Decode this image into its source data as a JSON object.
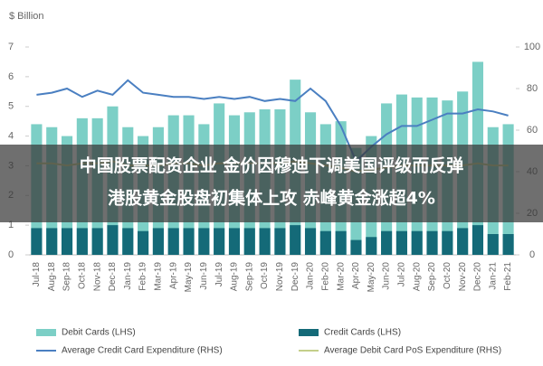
{
  "chart_data": {
    "type": "bar",
    "y_label": "$ Billion",
    "categories": [
      "Jul-18",
      "Aug-18",
      "Sep-18",
      "Oct-18",
      "Nov-18",
      "Dec-18",
      "Jan-19",
      "Feb-19",
      "Mar-19",
      "Apr-19",
      "May-19",
      "Jun-19",
      "Jul-19",
      "Aug-19",
      "Sep-19",
      "Oct-19",
      "Nov-19",
      "Dec-19",
      "Jan-20",
      "Feb-20",
      "Mar-20",
      "Apr-20",
      "May-20",
      "Jun-20",
      "Jul-20",
      "Aug-20",
      "Sep-20",
      "Oct-20",
      "Nov-20",
      "Dec-20",
      "Jan-21",
      "Feb-21"
    ],
    "series": [
      {
        "name": "Debit Cards (LHS)",
        "type": "bar",
        "color": "#7ccfc6",
        "values": [
          4.4,
          4.3,
          4.0,
          4.6,
          4.6,
          5.0,
          4.3,
          4.0,
          4.3,
          4.7,
          4.7,
          4.4,
          5.1,
          4.7,
          4.8,
          4.9,
          4.9,
          5.9,
          4.8,
          4.4,
          4.5,
          3.6,
          4.0,
          5.1,
          5.4,
          5.3,
          5.3,
          5.2,
          5.5,
          6.5,
          4.3,
          4.4
        ]
      },
      {
        "name": "Credit Cards (LHS)",
        "type": "bar",
        "color": "#146a78",
        "values": [
          0.9,
          0.9,
          0.9,
          0.9,
          0.9,
          1.0,
          0.9,
          0.8,
          0.9,
          0.9,
          0.9,
          0.9,
          0.9,
          0.9,
          0.9,
          0.9,
          0.9,
          1.0,
          0.9,
          0.8,
          0.8,
          0.5,
          0.6,
          0.8,
          0.8,
          0.8,
          0.8,
          0.8,
          0.9,
          1.0,
          0.7,
          0.7
        ]
      },
      {
        "name": "Average Credit Card Expenditure (RHS)",
        "type": "line",
        "axis": "y2",
        "color": "#4a7fc1",
        "values": [
          77,
          78,
          80,
          76,
          79,
          77,
          84,
          78,
          77,
          76,
          76,
          75,
          76,
          75,
          76,
          74,
          75,
          74,
          80,
          74,
          62,
          45,
          52,
          58,
          62,
          62,
          65,
          68,
          68,
          70,
          69,
          67
        ]
      },
      {
        "name": "Average Debit Card PoS Expenditure (RHS)",
        "type": "line",
        "axis": "y2",
        "color": "#c4cf8a",
        "values": [
          44,
          44,
          43,
          44,
          44,
          45,
          43,
          43,
          43,
          44,
          44,
          43,
          44,
          44,
          44,
          44,
          44,
          45,
          44,
          43,
          42,
          40,
          41,
          42,
          43,
          43,
          43,
          43,
          43,
          44,
          43,
          43
        ]
      }
    ],
    "ylim": [
      0,
      7
    ],
    "yticks": [
      0,
      1,
      2,
      3,
      4,
      5,
      6,
      7
    ],
    "y2lim": [
      0,
      100
    ],
    "y2ticks": [
      0,
      20,
      40,
      60,
      80,
      100
    ],
    "grid": false
  },
  "overlay": {
    "lines": [
      "中国股票配资企业 金价因穆迪下调美国评级而反弹",
      "港股黄金股盘初集体上攻 赤峰黄金涨超4%"
    ]
  }
}
